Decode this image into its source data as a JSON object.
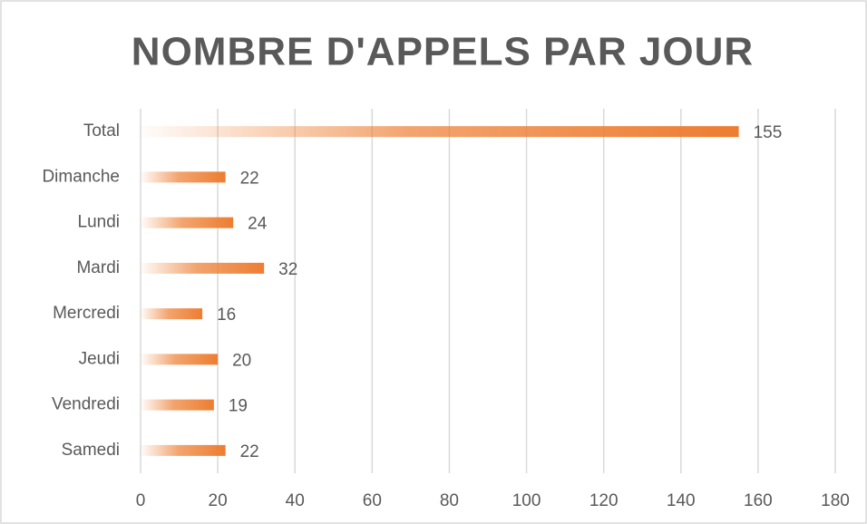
{
  "chart_data": {
    "type": "bar",
    "orientation": "horizontal",
    "title": "NOMBRE D'APPELS PAR JOUR",
    "categories": [
      "Total",
      "Dimanche",
      "Lundi",
      "Mardi",
      "Mercredi",
      "Jeudi",
      "Vendredi",
      "Samedi"
    ],
    "values": [
      155,
      22,
      24,
      32,
      16,
      20,
      19,
      22
    ],
    "color": "#ed7d31",
    "xlim": [
      0,
      180
    ],
    "xticks": [
      0,
      20,
      40,
      60,
      80,
      100,
      120,
      140,
      160,
      180
    ],
    "grid": true
  }
}
